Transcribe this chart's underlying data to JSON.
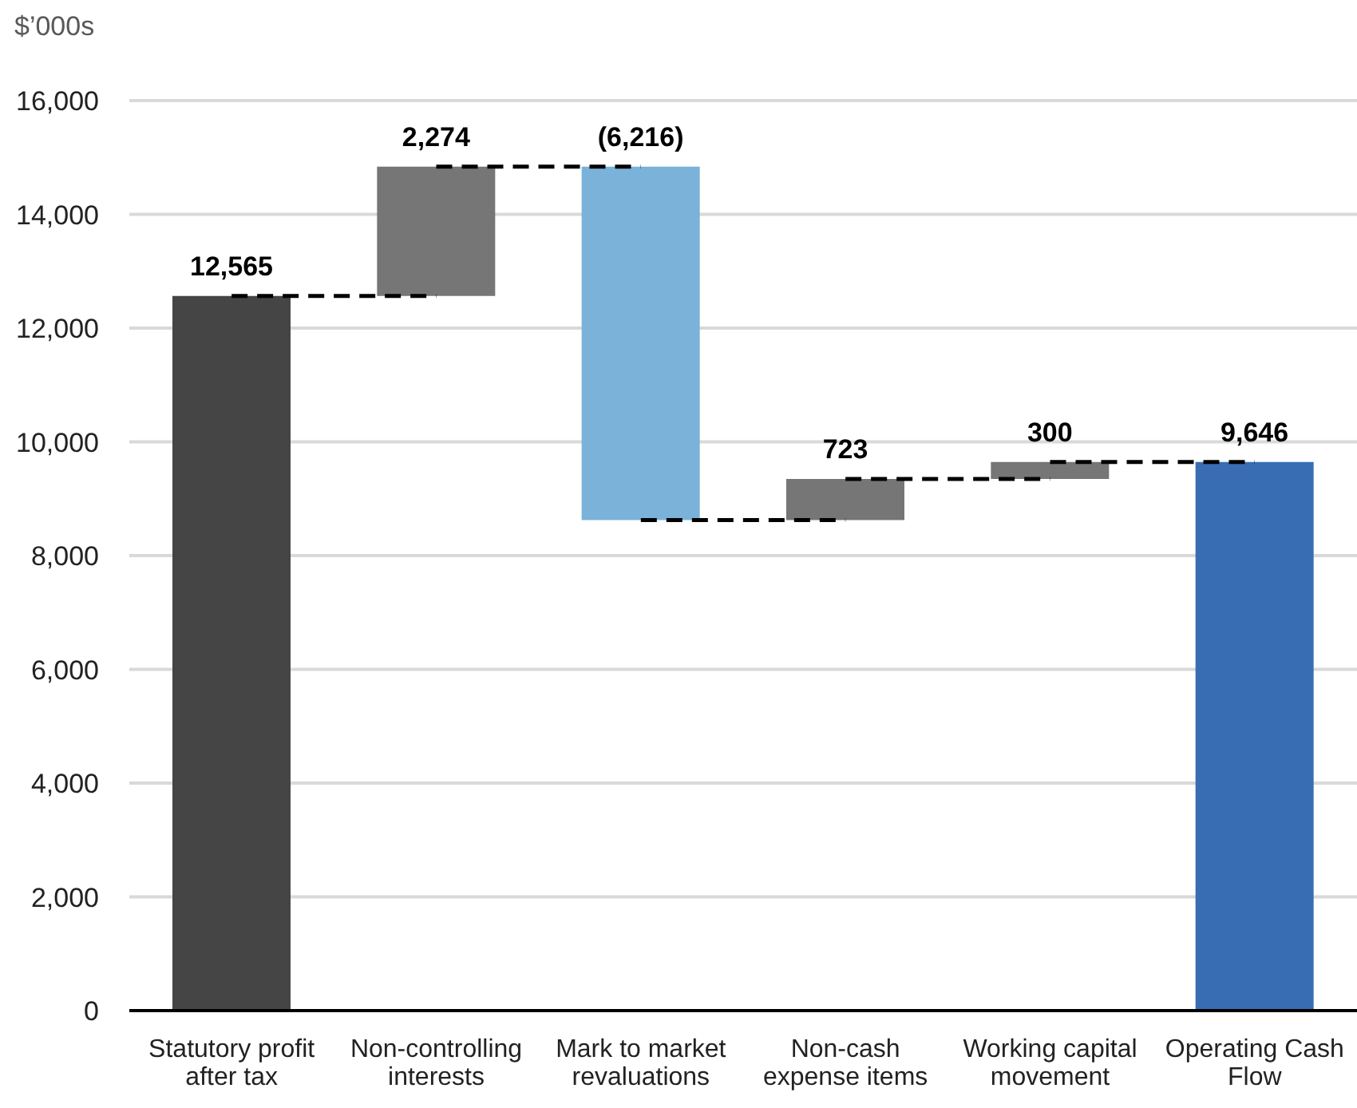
{
  "chart_data": {
    "type": "bar",
    "ylabel": "$’000s",
    "categories": [
      "Statutory profit after tax",
      "Non-controlling interests",
      "Mark to market revaluations",
      "Non-cash expense items",
      "Working capital movement",
      "Operating Cash Flow"
    ],
    "values": [
      12565,
      2274,
      -6216,
      723,
      300,
      9646
    ],
    "base": [
      0,
      12565,
      14839,
      8623,
      9346,
      0
    ],
    "colors": [
      "#454545",
      "#767676",
      "#7ab2d9",
      "#767676",
      "#767676",
      "#386db4"
    ],
    "value_labels": [
      "12,565",
      "2,274",
      "(6,216)",
      "723",
      "300",
      "9,646"
    ],
    "ylim": [
      0,
      16000
    ],
    "yticks": [
      0,
      {
        "value": 2000,
        "label": "2,000"
      },
      {
        "value": 4000,
        "label": "4,000"
      },
      {
        "value": 6000,
        "label": "6,000"
      },
      {
        "value": 8000,
        "label": "8,000"
      },
      {
        "value": 10000,
        "label": "10,000"
      },
      {
        "value": 12000,
        "label": "12,000"
      },
      {
        "value": 14000,
        "label": "14,000"
      },
      {
        "value": 16000,
        "label": "16,000"
      }
    ],
    "grid": "y",
    "line_style": "dashed"
  }
}
